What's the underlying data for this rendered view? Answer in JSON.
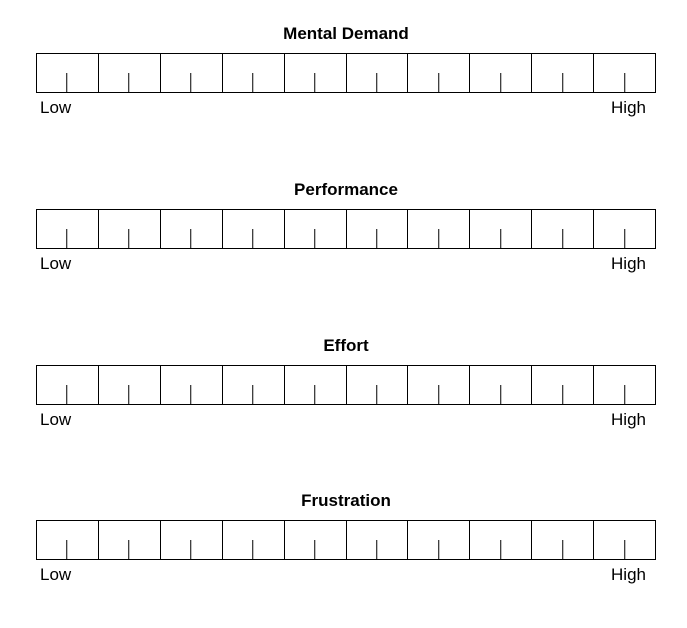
{
  "scales": [
    {
      "title": "Mental Demand",
      "low_label": "Low",
      "high_label": "High"
    },
    {
      "title": "Performance",
      "low_label": "Low",
      "high_label": "High"
    },
    {
      "title": "Effort",
      "low_label": "Low",
      "high_label": "High"
    },
    {
      "title": "Frustration",
      "low_label": "Low",
      "high_label": "High"
    }
  ]
}
